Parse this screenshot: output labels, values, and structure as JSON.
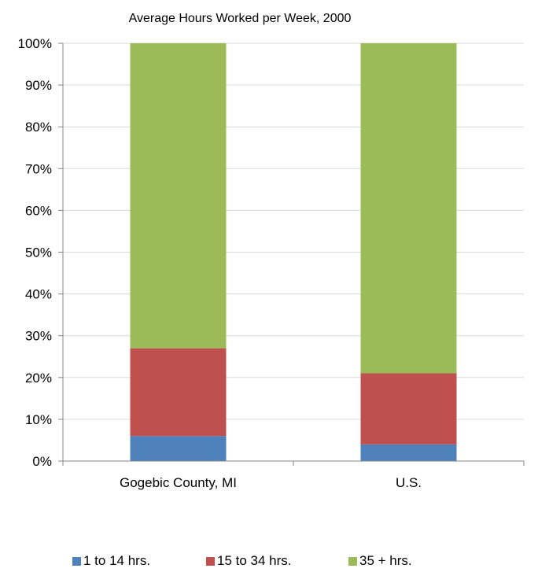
{
  "chart_data": {
    "type": "bar",
    "stacked": true,
    "title": "Average Hours Worked per Week, 2000",
    "categories": [
      "Gogebic County, MI",
      "U.S."
    ],
    "series": [
      {
        "name": "1 to 14 hrs.",
        "color": "#4f81bd",
        "values": [
          6,
          4
        ]
      },
      {
        "name": "15 to 34 hrs.",
        "color": "#c0504d",
        "values": [
          21,
          17
        ]
      },
      {
        "name": "35 + hrs.",
        "color": "#9bbb59",
        "values": [
          73,
          79
        ]
      }
    ],
    "ylim": [
      0,
      100
    ],
    "yticks": [
      0,
      10,
      20,
      30,
      40,
      50,
      60,
      70,
      80,
      90,
      100
    ],
    "ytick_suffix": "%",
    "grid": true,
    "legend_position": "bottom"
  }
}
